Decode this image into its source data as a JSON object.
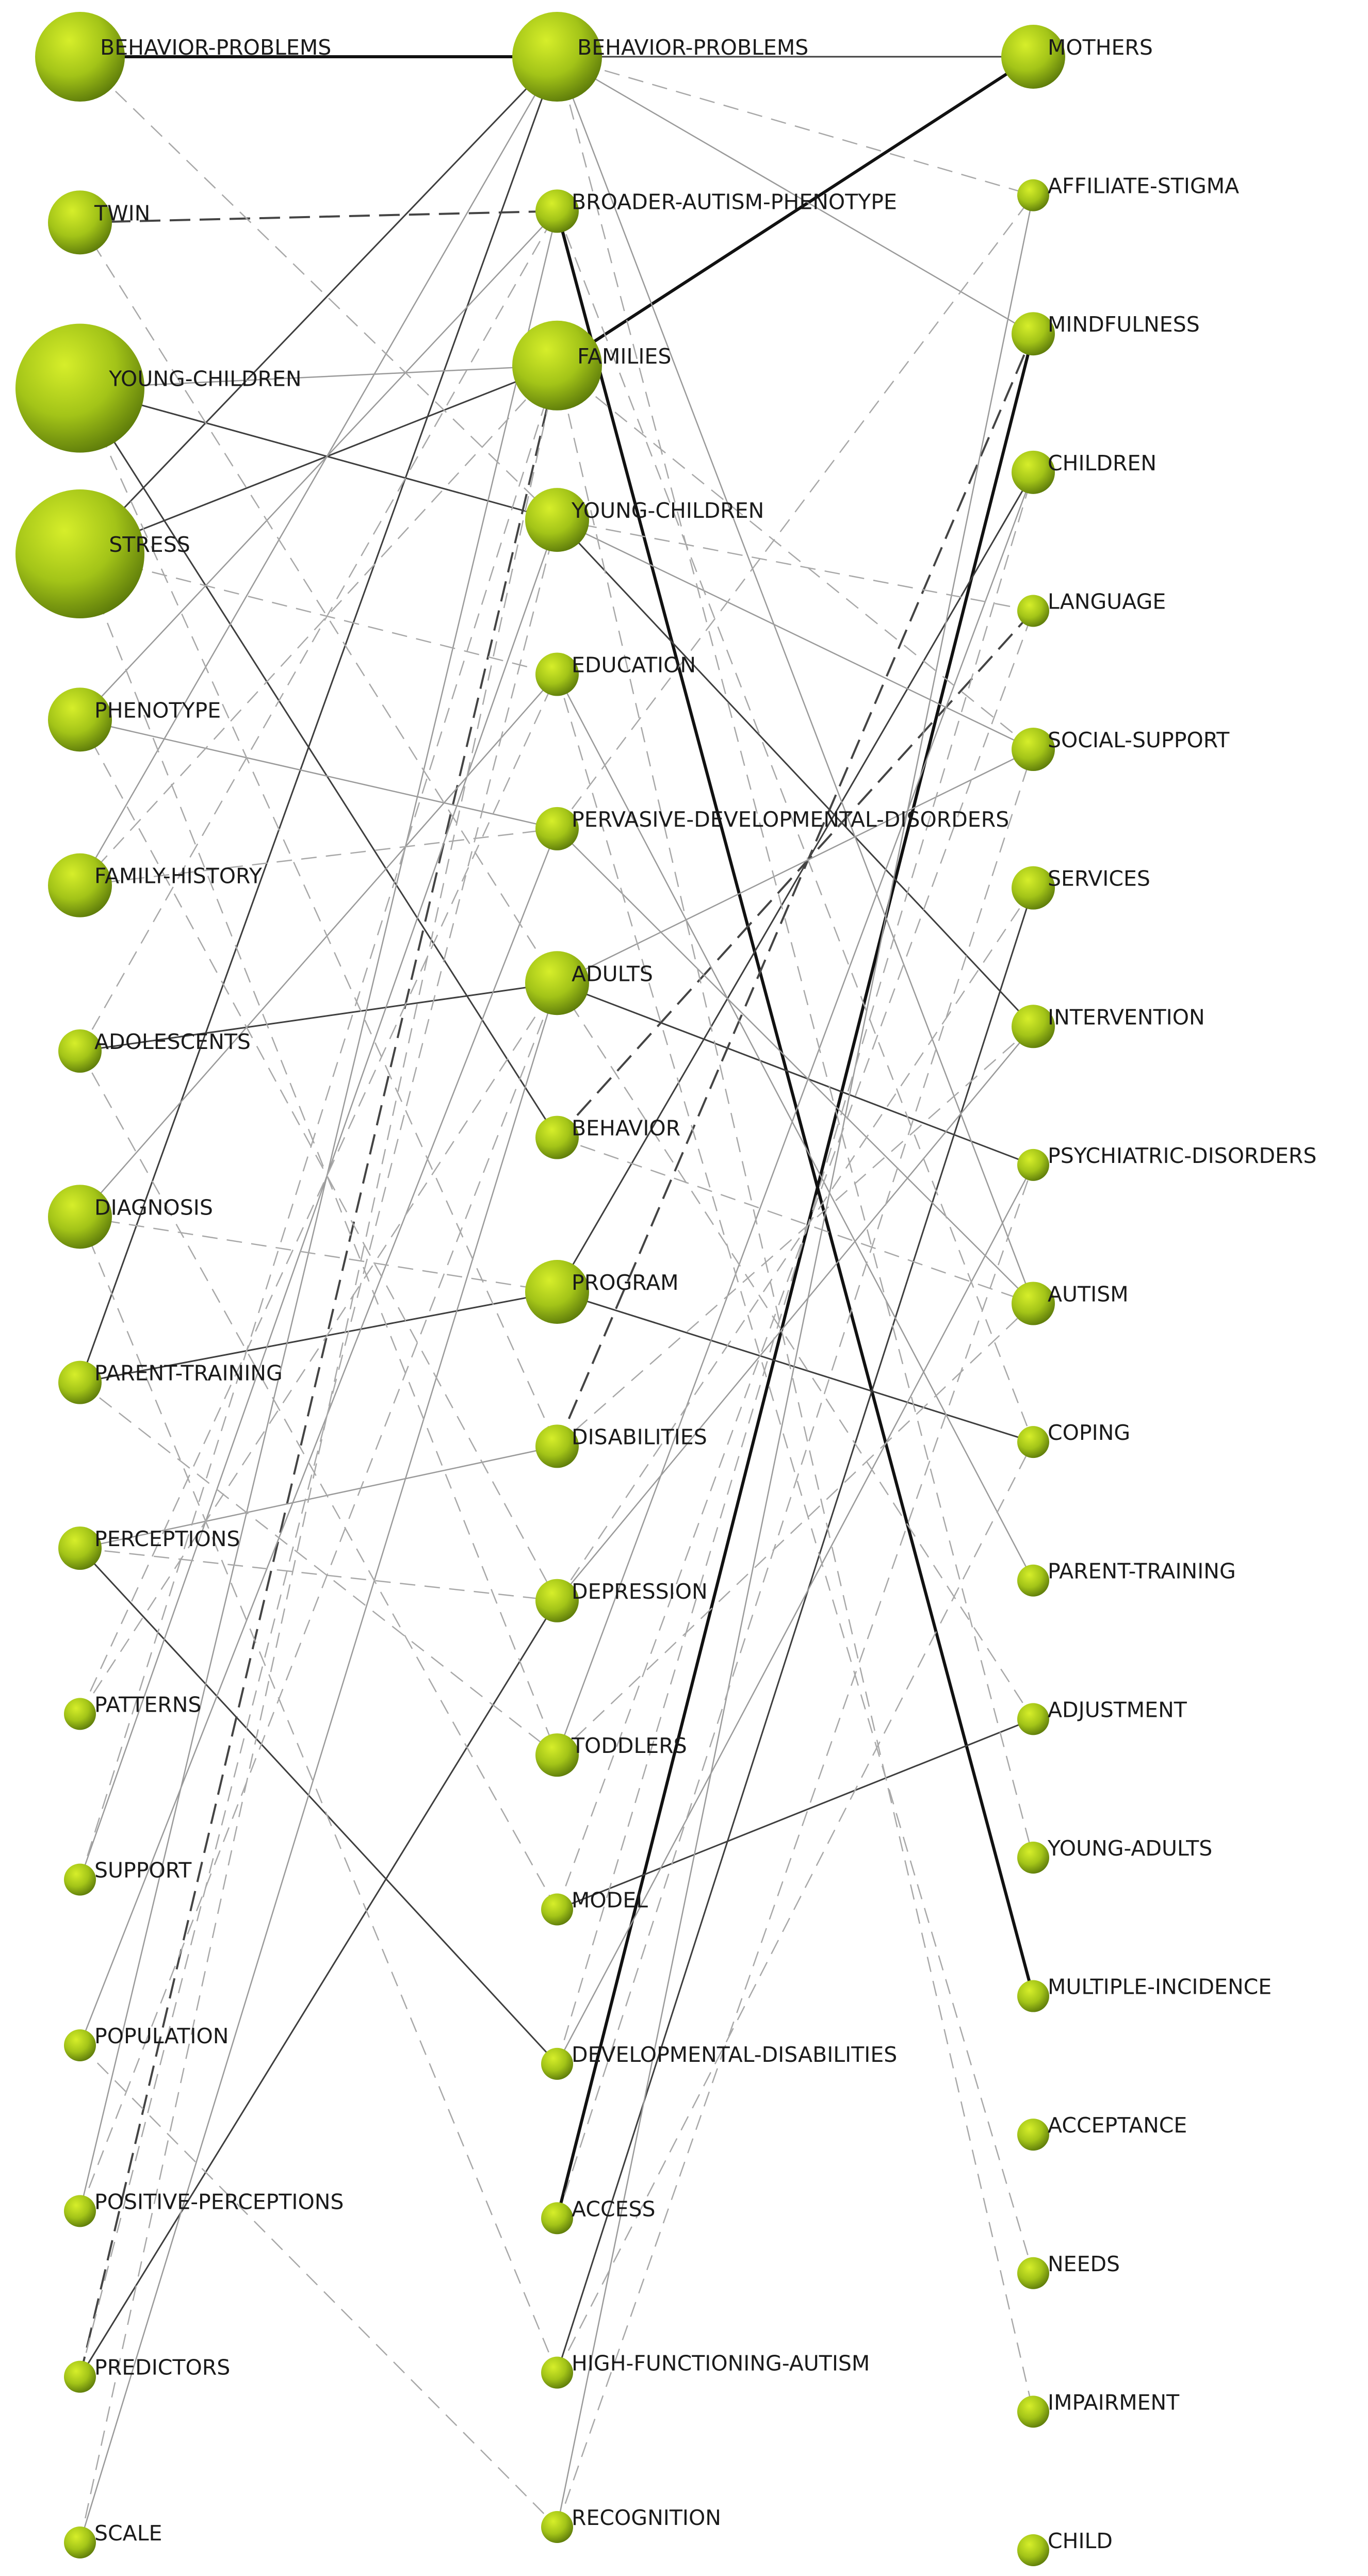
{
  "columns": [
    {
      "id": "left",
      "nodes": [
        {
          "label": "BEHAVIOR-PROBLEMS",
          "size": "large"
        },
        {
          "label": "TWIN",
          "size": "medium"
        },
        {
          "label": "YOUNG-CHILDREN",
          "size": "xlarge"
        },
        {
          "label": "STRESS",
          "size": "xlarge"
        },
        {
          "label": "PHENOTYPE",
          "size": "medium"
        },
        {
          "label": "FAMILY-HISTORY",
          "size": "medium"
        },
        {
          "label": "ADOLESCENTS",
          "size": "small"
        },
        {
          "label": "DIAGNOSIS",
          "size": "medium"
        },
        {
          "label": "PARENT-TRAINING",
          "size": "small"
        },
        {
          "label": "PERCEPTIONS",
          "size": "small"
        },
        {
          "label": "PATTERNS",
          "size": "tiny"
        },
        {
          "label": "SUPPORT",
          "size": "tiny"
        },
        {
          "label": "POPULATION",
          "size": "tiny"
        },
        {
          "label": "POSITIVE-PERCEPTIONS",
          "size": "tiny"
        },
        {
          "label": "PREDICTORS",
          "size": "tiny"
        },
        {
          "label": "SCALE",
          "size": "tiny"
        }
      ]
    },
    {
      "id": "middle",
      "nodes": [
        {
          "label": "BEHAVIOR-PROBLEMS",
          "size": "large"
        },
        {
          "label": "BROADER-AUTISM-PHENOTYPE",
          "size": "small"
        },
        {
          "label": "FAMILIES",
          "size": "large"
        },
        {
          "label": "YOUNG-CHILDREN",
          "size": "medium"
        },
        {
          "label": "EDUCATION",
          "size": "small"
        },
        {
          "label": "PERVASIVE-DEVELOPMENTAL-DISORDERS",
          "size": "small"
        },
        {
          "label": "ADULTS",
          "size": "medium"
        },
        {
          "label": "BEHAVIOR",
          "size": "small"
        },
        {
          "label": "PROGRAM",
          "size": "medium"
        },
        {
          "label": "DISABILITIES",
          "size": "small"
        },
        {
          "label": "DEPRESSION",
          "size": "small"
        },
        {
          "label": "TODDLERS",
          "size": "small"
        },
        {
          "label": "MODEL",
          "size": "tiny"
        },
        {
          "label": "DEVELOPMENTAL-DISABILITIES",
          "size": "tiny"
        },
        {
          "label": "ACCESS",
          "size": "tiny"
        },
        {
          "label": "HIGH-FUNCTIONING-AUTISM",
          "size": "tiny"
        },
        {
          "label": "RECOGNITION",
          "size": "tiny"
        }
      ]
    },
    {
      "id": "right",
      "nodes": [
        {
          "label": "MOTHERS",
          "size": "medium"
        },
        {
          "label": "AFFILIATE-STIGMA",
          "size": "tiny"
        },
        {
          "label": "MINDFULNESS",
          "size": "small"
        },
        {
          "label": "CHILDREN",
          "size": "small"
        },
        {
          "label": "LANGUAGE",
          "size": "tiny"
        },
        {
          "label": "SOCIAL-SUPPORT",
          "size": "small"
        },
        {
          "label": "SERVICES",
          "size": "small"
        },
        {
          "label": "INTERVENTION",
          "size": "small"
        },
        {
          "label": "PSYCHIATRIC-DISORDERS",
          "size": "tiny"
        },
        {
          "label": "AUTISM",
          "size": "small"
        },
        {
          "label": "COPING",
          "size": "tiny"
        },
        {
          "label": "PARENT-TRAINING",
          "size": "tiny"
        },
        {
          "label": "ADJUSTMENT",
          "size": "tiny"
        },
        {
          "label": "YOUNG-ADULTS",
          "size": "tiny"
        },
        {
          "label": "MULTIPLE-INCIDENCE",
          "size": "tiny"
        },
        {
          "label": "ACCEPTANCE",
          "size": "tiny"
        },
        {
          "label": "NEEDS",
          "size": "tiny"
        },
        {
          "label": "IMPAIRMENT",
          "size": "tiny"
        },
        {
          "label": "CHILD",
          "size": "tiny"
        }
      ]
    }
  ],
  "edges": [
    {
      "from": "left:0",
      "to": "middle:0",
      "style": "bold"
    },
    {
      "from": "middle:0",
      "to": "right:0",
      "style": "solid"
    },
    {
      "from": "middle:2",
      "to": "right:0",
      "style": "bold"
    },
    {
      "from": "middle:1",
      "to": "right:14",
      "style": "bold"
    },
    {
      "from": "middle:14",
      "to": "right:2",
      "style": "bold"
    },
    {
      "from": "left:3",
      "to": "middle:2",
      "style": "solid"
    },
    {
      "from": "left:3",
      "to": "middle:0",
      "style": "solid"
    },
    {
      "from": "left:2",
      "to": "middle:7",
      "style": "solid"
    },
    {
      "from": "left:2",
      "to": "middle:3",
      "style": "solid"
    },
    {
      "from": "middle:3",
      "to": "right:7",
      "style": "solid"
    },
    {
      "from": "left:6",
      "to": "middle:6",
      "style": "solid"
    },
    {
      "from": "left:8",
      "to": "middle:8",
      "style": "solid"
    },
    {
      "from": "left:8",
      "to": "middle:0",
      "style": "solid"
    },
    {
      "from": "middle:8",
      "to": "right:10",
      "style": "solid"
    },
    {
      "from": "middle:8",
      "to": "right:3",
      "style": "solid"
    },
    {
      "from": "middle:6",
      "to": "right:8",
      "style": "solid"
    },
    {
      "from": "left:9",
      "to": "middle:13",
      "style": "solid"
    },
    {
      "from": "middle:12",
      "to": "right:12",
      "style": "solid"
    },
    {
      "from": "middle:15",
      "to": "right:6",
      "style": "solid"
    },
    {
      "from": "left:14",
      "to": "middle:10",
      "style": "solid"
    },
    {
      "from": "left:1",
      "to": "middle:1",
      "style": "dash-dark"
    },
    {
      "from": "middle:7",
      "to": "right:4",
      "style": "dash-dark"
    },
    {
      "from": "middle:9",
      "to": "right:2",
      "style": "dash-dark"
    },
    {
      "from": "left:14",
      "to": "middle:2",
      "style": "dash-dark"
    },
    {
      "from": "middle:0",
      "to": "right:2",
      "style": "light"
    },
    {
      "from": "middle:0",
      "to": "right:9",
      "style": "light"
    },
    {
      "from": "middle:3",
      "to": "right:5",
      "style": "light"
    },
    {
      "from": "left:4",
      "to": "middle:1",
      "style": "light"
    },
    {
      "from": "left:4",
      "to": "middle:5",
      "style": "light"
    },
    {
      "from": "left:2",
      "to": "middle:2",
      "style": "light"
    },
    {
      "from": "left:7",
      "to": "middle:4",
      "style": "light"
    },
    {
      "from": "left:5",
      "to": "middle:0",
      "style": "light"
    },
    {
      "from": "left:9",
      "to": "middle:9",
      "style": "light"
    },
    {
      "from": "left:11",
      "to": "middle:3",
      "style": "light"
    },
    {
      "from": "left:12",
      "to": "middle:5",
      "style": "light"
    },
    {
      "from": "left:15",
      "to": "middle:6",
      "style": "light"
    },
    {
      "from": "left:13",
      "to": "middle:1",
      "style": "light"
    },
    {
      "from": "middle:5",
      "to": "right:9",
      "style": "light"
    },
    {
      "from": "middle:6",
      "to": "right:5",
      "style": "light"
    },
    {
      "from": "middle:11",
      "to": "right:3",
      "style": "light"
    },
    {
      "from": "middle:13",
      "to": "right:8",
      "style": "light"
    },
    {
      "from": "middle:4",
      "to": "right:11",
      "style": "light"
    },
    {
      "from": "middle:10",
      "to": "right:7",
      "style": "light"
    },
    {
      "from": "middle:16",
      "to": "right:1",
      "style": "light"
    },
    {
      "from": "left:0",
      "to": "middle:3",
      "style": "dash-light"
    },
    {
      "from": "left:1",
      "to": "middle:6",
      "style": "dash-light"
    },
    {
      "from": "left:2",
      "to": "middle:9",
      "style": "dash-light"
    },
    {
      "from": "left:3",
      "to": "middle:4",
      "style": "dash-light"
    },
    {
      "from": "left:3",
      "to": "middle:11",
      "style": "dash-light"
    },
    {
      "from": "left:4",
      "to": "middle:10",
      "style": "dash-light"
    },
    {
      "from": "left:5",
      "to": "middle:2",
      "style": "dash-light"
    },
    {
      "from": "left:5",
      "to": "middle:5",
      "style": "dash-light"
    },
    {
      "from": "left:6",
      "to": "middle:12",
      "style": "dash-light"
    },
    {
      "from": "left:6",
      "to": "middle:1",
      "style": "dash-light"
    },
    {
      "from": "left:7",
      "to": "middle:15",
      "style": "dash-light"
    },
    {
      "from": "left:7",
      "to": "middle:8",
      "style": "dash-light"
    },
    {
      "from": "left:8",
      "to": "middle:11",
      "style": "dash-light"
    },
    {
      "from": "left:9",
      "to": "middle:10",
      "style": "dash-light"
    },
    {
      "from": "left:10",
      "to": "middle:6",
      "style": "dash-light"
    },
    {
      "from": "left:10",
      "to": "middle:4",
      "style": "dash-light"
    },
    {
      "from": "left:11",
      "to": "middle:2",
      "style": "dash-light"
    },
    {
      "from": "left:12",
      "to": "middle:16",
      "style": "dash-light"
    },
    {
      "from": "left:13",
      "to": "middle:6",
      "style": "dash-light"
    },
    {
      "from": "left:14",
      "to": "middle:3",
      "style": "dash-light"
    },
    {
      "from": "left:15",
      "to": "middle:2",
      "style": "dash-light"
    },
    {
      "from": "middle:0",
      "to": "right:1",
      "style": "dash-light"
    },
    {
      "from": "middle:0",
      "to": "right:13",
      "style": "dash-light"
    },
    {
      "from": "middle:1",
      "to": "right:10",
      "style": "dash-light"
    },
    {
      "from": "middle:2",
      "to": "right:5",
      "style": "dash-light"
    },
    {
      "from": "middle:3",
      "to": "right:4",
      "style": "dash-light"
    },
    {
      "from": "middle:4",
      "to": "right:16",
      "style": "dash-light"
    },
    {
      "from": "middle:5",
      "to": "right:1",
      "style": "dash-light"
    },
    {
      "from": "middle:6",
      "to": "right:12",
      "style": "dash-light"
    },
    {
      "from": "middle:7",
      "to": "right:9",
      "style": "dash-light"
    },
    {
      "from": "middle:9",
      "to": "right:7",
      "style": "dash-light"
    },
    {
      "from": "middle:10",
      "to": "right:6",
      "style": "dash-light"
    },
    {
      "from": "middle:11",
      "to": "right:9",
      "style": "dash-light"
    },
    {
      "from": "middle:12",
      "to": "right:4",
      "style": "dash-light"
    },
    {
      "from": "middle:13",
      "to": "right:3",
      "style": "dash-light"
    },
    {
      "from": "middle:15",
      "to": "right:10",
      "style": "dash-light"
    },
    {
      "from": "middle:16",
      "to": "right:8",
      "style": "dash-light"
    },
    {
      "from": "middle:2",
      "to": "right:17",
      "style": "dash-light"
    },
    {
      "from": "middle:14",
      "to": "right:5",
      "style": "dash-light"
    }
  ]
}
